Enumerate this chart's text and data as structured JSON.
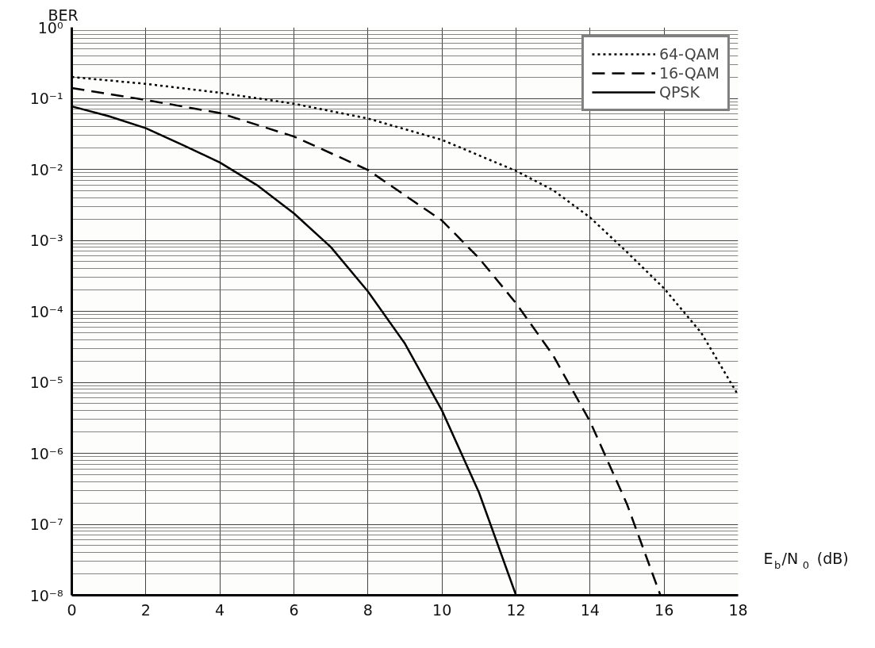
{
  "chart_data": {
    "type": "line",
    "ylabel": "BER",
    "xlabel": "E$_{b}$/N$_{0}$ (dB)",
    "x": [
      0,
      1,
      2,
      3,
      4,
      5,
      6,
      7,
      8,
      9,
      10,
      11,
      12
    ],
    "series": [
      {
        "name": "64-QAM",
        "color": "#000000",
        "line_style": "dotted",
        "x": [
          0,
          2,
          4,
          6,
          8,
          10,
          12,
          13,
          14,
          15,
          16,
          17,
          18
        ],
        "values": [
          0.2,
          0.16,
          0.12,
          0.084,
          0.052,
          0.026,
          0.0095,
          0.0051,
          0.0021,
          0.00068,
          0.00021,
          5e-05,
          6.6e-06
        ]
      },
      {
        "name": "16-QAM",
        "color": "#000000",
        "line_style": "dashed",
        "x": [
          0,
          2,
          4,
          6,
          8,
          9,
          10,
          11,
          12,
          13,
          14,
          15,
          15.9
        ],
        "values": [
          0.14,
          0.095,
          0.062,
          0.029,
          0.0098,
          0.0043,
          0.0019,
          0.00056,
          0.00013,
          2.4e-05,
          2.8e-06,
          1.9e-07,
          1e-08
        ]
      },
      {
        "name": "QPSK",
        "color": "#000000",
        "line_style": "solid",
        "values": [
          0.077,
          0.056,
          0.038,
          0.022,
          0.0125,
          0.006,
          0.0024,
          0.0008,
          0.00019,
          3.5e-05,
          4e-06,
          2.8e-07,
          1e-08
        ]
      }
    ],
    "log": "y",
    "xlim": [
      0,
      18
    ],
    "ylim": [
      1e-08,
      1
    ],
    "xticks": [
      0,
      2,
      4,
      6,
      8,
      10,
      12,
      14,
      16,
      18
    ],
    "yticks": [
      {
        "value": 1,
        "label": "10⁰"
      },
      {
        "value": 0.1,
        "label": "10⁻¹"
      },
      {
        "value": 0.01,
        "label": "10⁻²"
      },
      {
        "value": 0.001,
        "label": "10⁻³"
      },
      {
        "value": 0.0001,
        "label": "10⁻⁴"
      },
      {
        "value": 1e-05,
        "label": "10⁻⁵"
      },
      {
        "value": 1e-06,
        "label": "10⁻⁶"
      },
      {
        "value": 1e-07,
        "label": "10⁻⁷"
      },
      {
        "value": 1e-08,
        "label": "10⁻⁸"
      }
    ],
    "grid": true,
    "legend": "top right",
    "marker": "none"
  }
}
